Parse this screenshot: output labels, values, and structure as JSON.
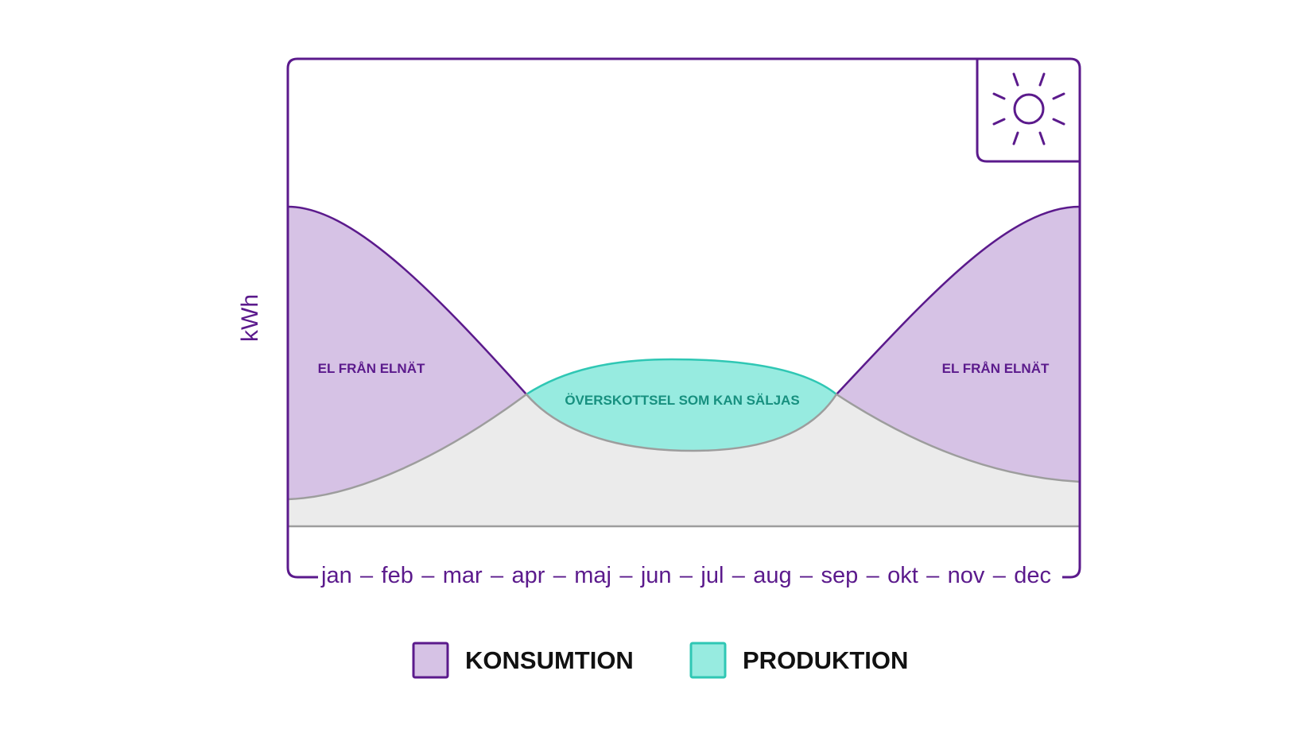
{
  "chart_data": {
    "type": "area",
    "ylabel": "kWh",
    "months": [
      "jan",
      "feb",
      "mar",
      "apr",
      "maj",
      "jun",
      "jul",
      "aug",
      "sep",
      "okt",
      "nov",
      "dec"
    ],
    "separator": "–",
    "regions": {
      "left_grid": "EL FRÅN ELNÄT",
      "surplus": "ÖVERSKOTTSEL SOM KAN SÄLJAS",
      "right_grid": "EL FRÅN ELNÄT"
    },
    "legend": [
      {
        "label": "KONSUMTION",
        "color": "#d6c2e5",
        "border": "#5b1a8c"
      },
      {
        "label": "PRODUKTION",
        "color": "#97ebe0",
        "border": "#2fc7b4"
      }
    ],
    "icon": "sun-icon"
  },
  "colors": {
    "accent": "#5b1a8c",
    "consumption": "#d6c2e5",
    "production": "#97ebe0",
    "production_stroke": "#2fc7b4",
    "production_text": "#17907f",
    "base": "#ebebeb",
    "base_stroke": "#9d9d9d"
  }
}
